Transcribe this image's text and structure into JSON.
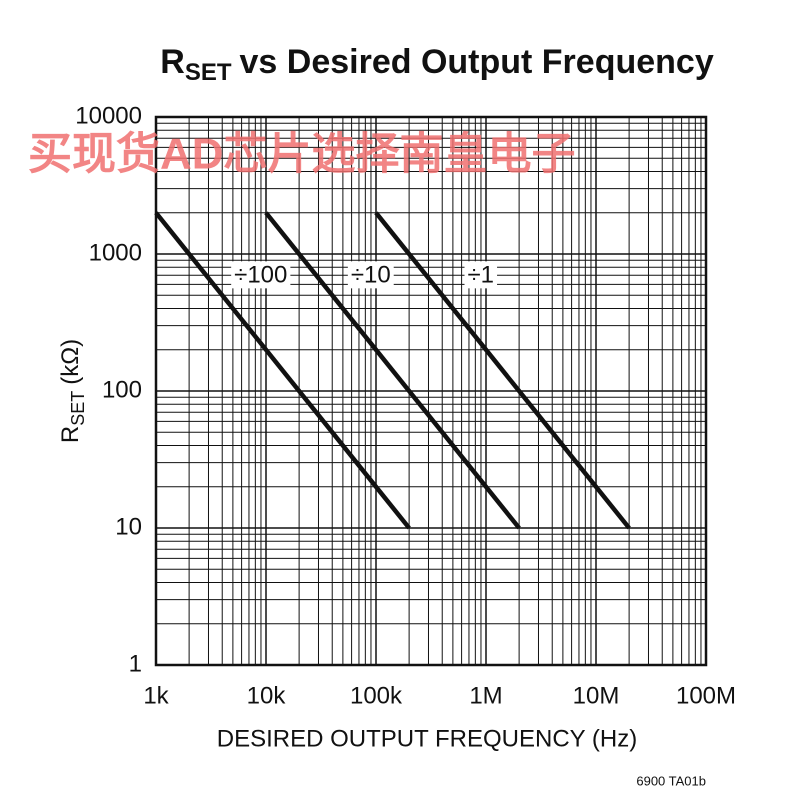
{
  "chart_data": {
    "type": "line",
    "title_parts": [
      "R",
      "SET",
      "vs Desired Output Frequency"
    ],
    "x_label": "DESIRED OUTPUT FREQUENCY (Hz)",
    "y_label_parts": [
      "R",
      "SET",
      "(kΩ)"
    ],
    "footnote": "6900 TA01b",
    "watermark": "买现货AD芯片选择南皇电子",
    "x_log": true,
    "y_log": true,
    "grid": true,
    "minor_grid": true,
    "xlim": [
      1000,
      100000000
    ],
    "xticks": [
      {
        "value": 1000,
        "label": "1k"
      },
      {
        "value": 10000,
        "label": "10k"
      },
      {
        "value": 100000,
        "label": "100k"
      },
      {
        "value": 1000000,
        "label": "1M"
      },
      {
        "value": 10000000,
        "label": "10M"
      },
      {
        "value": 100000000,
        "label": "100M"
      }
    ],
    "ylim": [
      1,
      10000
    ],
    "yticks": [
      1,
      10,
      100,
      1000,
      10000
    ],
    "series": [
      {
        "name": "÷100",
        "color": "#111111",
        "x": [
          1000,
          200000
        ],
        "values": [
          2000,
          10
        ]
      },
      {
        "name": "÷10",
        "color": "#111111",
        "x": [
          10000,
          2000000
        ],
        "values": [
          2000,
          10
        ]
      },
      {
        "name": "÷1",
        "color": "#111111",
        "x": [
          100000,
          20000000
        ],
        "values": [
          2000,
          10
        ]
      }
    ]
  }
}
